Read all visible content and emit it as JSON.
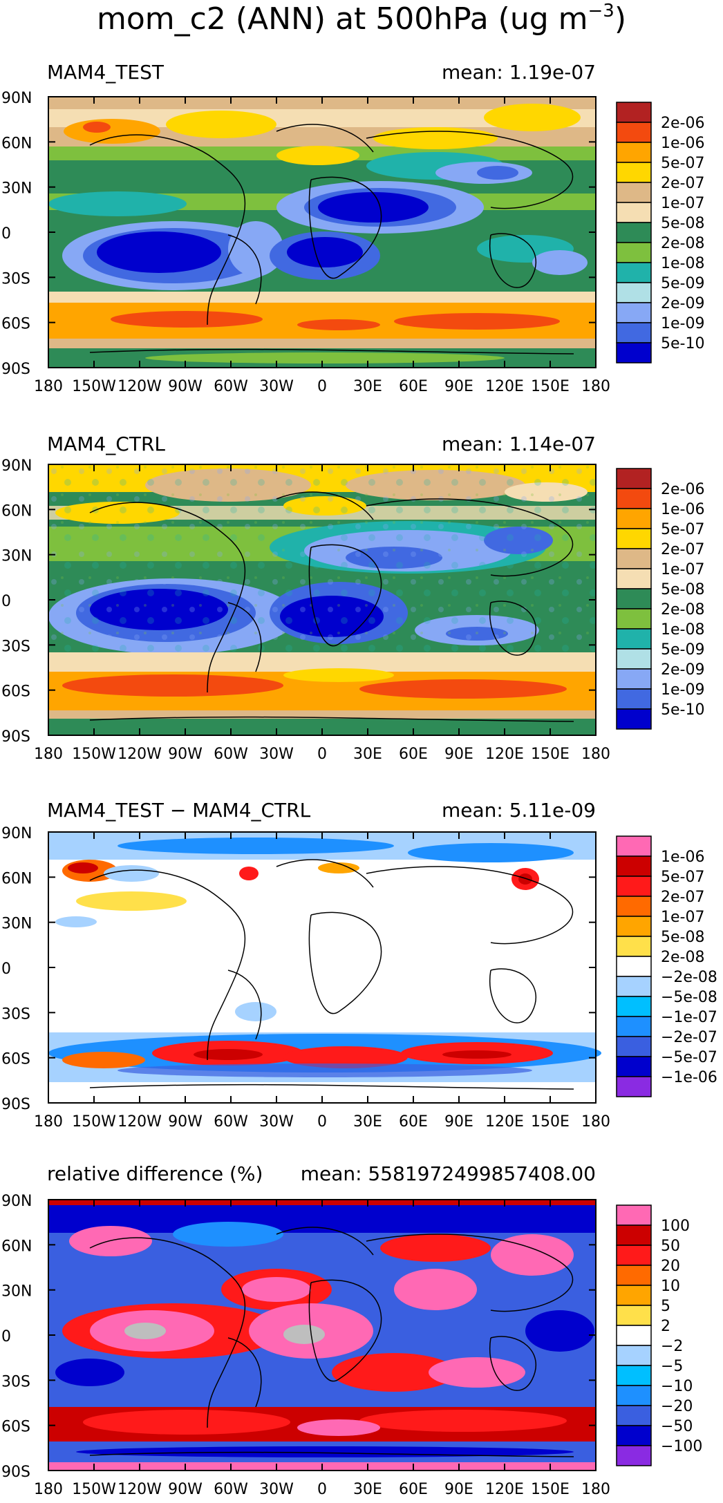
{
  "figure": {
    "title": "mom_c2 (ANN) at 500hPa (ug m",
    "title_exponent": "−3",
    "title_close": ")"
  },
  "axes": {
    "y_ticks": [
      "90N",
      "60N",
      "30N",
      "0",
      "30S",
      "60S",
      "90S"
    ],
    "x_ticks": [
      "180",
      "150W",
      "120W",
      "90W",
      "60W",
      "30W",
      "0",
      "30E",
      "60E",
      "90E",
      "120E",
      "150E",
      "180"
    ]
  },
  "chart_data": [
    {
      "type": "heatmap",
      "title": "MAM4_TEST",
      "mean_label": "mean: 1.19e-07",
      "mean_value": 1.19e-07,
      "xlim": [
        -180,
        180
      ],
      "ylim": [
        -90,
        90
      ],
      "colorbar_labels": [
        "2e-06",
        "1e-06",
        "5e-07",
        "2e-07",
        "1e-07",
        "5e-08",
        "2e-08",
        "1e-08",
        "5e-09",
        "2e-09",
        "1e-09",
        "5e-10"
      ],
      "colorbar_colors": [
        "#b22222",
        "#f34a0f",
        "#ffa500",
        "#ffd700",
        "#deb887",
        "#f5deb3",
        "#2e8b57",
        "#7ec03e",
        "#20b2aa",
        "#b0e0e6",
        "#87a8f5",
        "#4169e1",
        "#0000cd"
      ]
    },
    {
      "type": "heatmap",
      "title": "MAM4_CTRL",
      "mean_label": "mean: 1.14e-07",
      "mean_value": 1.14e-07,
      "xlim": [
        -180,
        180
      ],
      "ylim": [
        -90,
        90
      ],
      "colorbar_labels": [
        "2e-06",
        "1e-06",
        "5e-07",
        "2e-07",
        "1e-07",
        "5e-08",
        "2e-08",
        "1e-08",
        "5e-09",
        "2e-09",
        "1e-09",
        "5e-10"
      ],
      "colorbar_colors": [
        "#b22222",
        "#f34a0f",
        "#ffa500",
        "#ffd700",
        "#deb887",
        "#f5deb3",
        "#2e8b57",
        "#7ec03e",
        "#20b2aa",
        "#b0e0e6",
        "#87a8f5",
        "#4169e1",
        "#0000cd"
      ]
    },
    {
      "type": "heatmap",
      "title": "MAM4_TEST − MAM4_CTRL",
      "mean_label": "mean: 5.11e-09",
      "mean_value": 5.11e-09,
      "xlim": [
        -180,
        180
      ],
      "ylim": [
        -90,
        90
      ],
      "colorbar_labels": [
        "1e-06",
        "5e-07",
        "2e-07",
        "1e-07",
        "5e-08",
        "2e-08",
        "−2e-08",
        "−5e-08",
        "−1e-07",
        "−2e-07",
        "−5e-07",
        "−1e-06"
      ],
      "colorbar_colors": [
        "#ff69b4",
        "#cc0000",
        "#ff1a1a",
        "#ff6a00",
        "#ffa500",
        "#ffe04a",
        "#ffffff",
        "#a6d2ff",
        "#00bfff",
        "#1e90ff",
        "#3a5fe0",
        "#0000cd",
        "#8a2be2"
      ]
    },
    {
      "type": "heatmap",
      "title": "relative difference (%)",
      "mean_label": "mean: 5581972499857408.00",
      "mean_value": 5581972499857408.0,
      "xlim": [
        -180,
        180
      ],
      "ylim": [
        -90,
        90
      ],
      "colorbar_labels": [
        "100",
        "50",
        "20",
        "10",
        "5",
        "2",
        "−2",
        "−5",
        "−10",
        "−20",
        "−50",
        "−100"
      ],
      "colorbar_colors": [
        "#ff69b4",
        "#cc0000",
        "#ff1a1a",
        "#ff6a00",
        "#ffa500",
        "#ffe04a",
        "#ffffff",
        "#a6d2ff",
        "#00bfff",
        "#1e90ff",
        "#3a5fe0",
        "#0000cd",
        "#8a2be2"
      ]
    }
  ]
}
